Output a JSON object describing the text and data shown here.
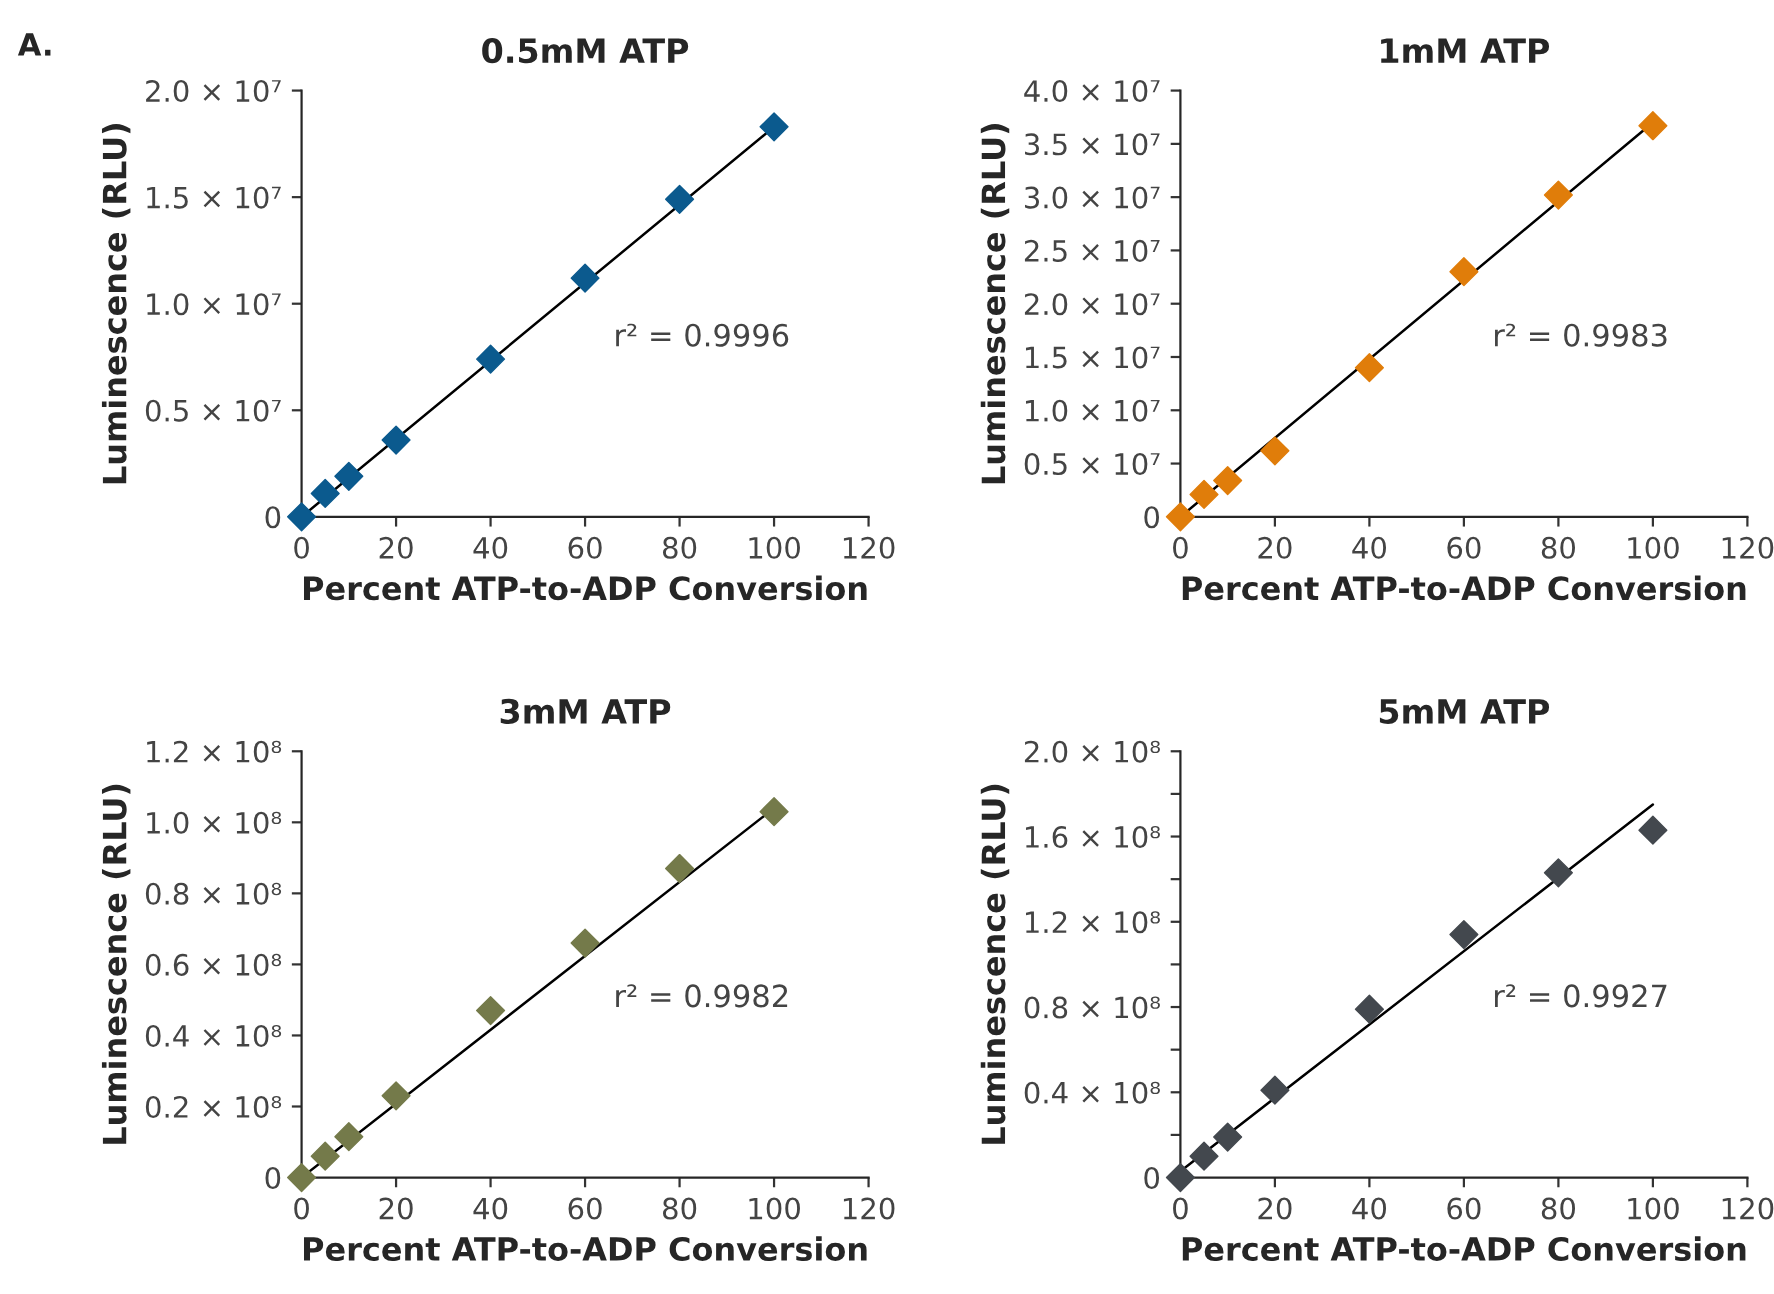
{
  "chart_data": [
    {
      "type": "scatter",
      "title": "0.5mM ATP",
      "xlabel": "Percent ATP-to-ADP Conversion",
      "ylabel": "Luminescence (RLU)",
      "annotations": [
        "A.",
        "r² = 0.9996"
      ],
      "marker": "diamond",
      "grid": false,
      "legend": false,
      "xlim": [
        0,
        120
      ],
      "xticks": [
        0,
        20,
        40,
        60,
        80,
        100,
        120
      ],
      "ylim": [
        0,
        20000000
      ],
      "yticks": [
        {
          "value": 0,
          "label": "0"
        },
        {
          "value": 5000000,
          "label": "0.5 × 10⁷"
        },
        {
          "value": 10000000,
          "label": "1.0 × 10⁷"
        },
        {
          "value": 15000000,
          "label": "1.5 × 10⁷"
        },
        {
          "value": 20000000,
          "label": "2.0 × 10⁷"
        }
      ],
      "series": [
        {
          "color": "#0b5a8e",
          "x": [
            0,
            5,
            10,
            20,
            40,
            60,
            80,
            100
          ],
          "values": [
            0,
            1100000,
            1900000,
            3600000,
            7400000,
            11200000,
            14900000,
            18300000
          ]
        },
        {
          "type": "line",
          "color": "#000000",
          "marker": "none",
          "x": [
            0,
            100
          ],
          "values": [
            0,
            18300000
          ]
        }
      ]
    },
    {
      "type": "scatter",
      "title": "1mM ATP",
      "xlabel": "Percent ATP-to-ADP Conversion",
      "ylabel": "Luminescence (RLU)",
      "annotations": [
        "r² = 0.9983"
      ],
      "marker": "diamond",
      "grid": false,
      "legend": false,
      "xlim": [
        0,
        120
      ],
      "xticks": [
        0,
        20,
        40,
        60,
        80,
        100,
        120
      ],
      "ylim": [
        0,
        40000000
      ],
      "yticks": [
        {
          "value": 0,
          "label": "0"
        },
        {
          "value": 5000000,
          "label": "0.5 × 10⁷"
        },
        {
          "value": 10000000,
          "label": "1.0 × 10⁷"
        },
        {
          "value": 15000000,
          "label": "1.5 × 10⁷"
        },
        {
          "value": 20000000,
          "label": "2.0 × 10⁷"
        },
        {
          "value": 25000000,
          "label": "2.5 × 10⁷"
        },
        {
          "value": 30000000,
          "label": "3.0 × 10⁷"
        },
        {
          "value": 35000000,
          "label": "3.5 × 10⁷"
        },
        {
          "value": 40000000,
          "label": "4.0 × 10⁷"
        }
      ],
      "series": [
        {
          "color": "#e07d0a",
          "x": [
            0,
            5,
            10,
            20,
            40,
            60,
            80,
            100
          ],
          "values": [
            0,
            2100000,
            3400000,
            6200000,
            14000000,
            23000000,
            30200000,
            36700000
          ]
        },
        {
          "type": "line",
          "color": "#000000",
          "marker": "none",
          "x": [
            0,
            100
          ],
          "values": [
            0,
            37000000
          ]
        }
      ]
    },
    {
      "type": "scatter",
      "title": "3mM ATP",
      "xlabel": "Percent ATP-to-ADP Conversion",
      "ylabel": "Luminescence (RLU)",
      "annotations": [
        "r² = 0.9982"
      ],
      "marker": "diamond",
      "grid": false,
      "legend": false,
      "xlim": [
        0,
        120
      ],
      "xticks": [
        0,
        20,
        40,
        60,
        80,
        100,
        120
      ],
      "ylim": [
        0,
        120000000
      ],
      "yticks": [
        {
          "value": 0,
          "label": "0"
        },
        {
          "value": 20000000,
          "label": "0.2 × 10⁸"
        },
        {
          "value": 40000000,
          "label": "0.4 × 10⁸"
        },
        {
          "value": 60000000,
          "label": "0.6 × 10⁸"
        },
        {
          "value": 80000000,
          "label": "0.8 × 10⁸"
        },
        {
          "value": 100000000,
          "label": "1.0 × 10⁸"
        },
        {
          "value": 120000000,
          "label": "1.2 × 10⁸"
        }
      ],
      "series": [
        {
          "color": "#747a4a",
          "x": [
            0,
            5,
            10,
            20,
            40,
            60,
            80,
            100
          ],
          "values": [
            0,
            6000000,
            11500000,
            23000000,
            47000000,
            66000000,
            87000000,
            103000000
          ]
        },
        {
          "type": "line",
          "color": "#000000",
          "marker": "none",
          "x": [
            0,
            100
          ],
          "values": [
            0,
            104000000
          ]
        }
      ]
    },
    {
      "type": "scatter",
      "title": "5mM ATP",
      "xlabel": "Percent ATP-to-ADP Conversion",
      "ylabel": "Luminescence (RLU)",
      "annotations": [
        "r² = 0.9927"
      ],
      "marker": "diamond",
      "grid": false,
      "legend": false,
      "xlim": [
        0,
        120
      ],
      "xticks": [
        0,
        20,
        40,
        60,
        80,
        100,
        120
      ],
      "ylim": [
        0,
        200000000
      ],
      "yticks": [
        {
          "value": 0,
          "label": "0"
        },
        {
          "value": 20000000,
          "label": null
        },
        {
          "value": 40000000,
          "label": "0.4 × 10⁸"
        },
        {
          "value": 60000000,
          "label": null
        },
        {
          "value": 80000000,
          "label": "0.8 × 10⁸"
        },
        {
          "value": 100000000,
          "label": null
        },
        {
          "value": 120000000,
          "label": "1.2 × 10⁸"
        },
        {
          "value": 140000000,
          "label": null
        },
        {
          "value": 160000000,
          "label": "1.6 × 10⁸"
        },
        {
          "value": 180000000,
          "label": null
        },
        {
          "value": 200000000,
          "label": "2.0 × 10⁸"
        }
      ],
      "series": [
        {
          "color": "#43484e",
          "x": [
            0,
            5,
            10,
            20,
            40,
            60,
            80,
            100
          ],
          "values": [
            0,
            10000000,
            19000000,
            41000000,
            79000000,
            114000000,
            143000000,
            163000000
          ]
        },
        {
          "type": "line",
          "color": "#000000",
          "marker": "none",
          "x": [
            0,
            100
          ],
          "values": [
            3000000,
            175000000
          ]
        }
      ]
    }
  ]
}
